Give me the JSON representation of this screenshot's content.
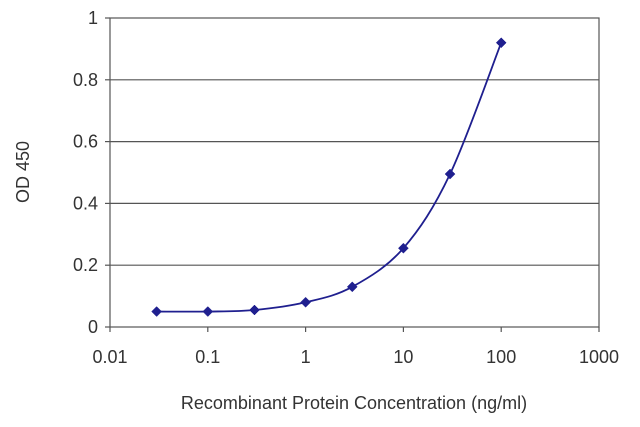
{
  "chart_data": {
    "type": "scatter",
    "title": "",
    "xlabel": "Recombinant Protein Concentration (ng/ml)",
    "ylabel": "OD 450",
    "xscale": "log",
    "xlim": [
      0.01,
      1000
    ],
    "ylim": [
      0,
      1
    ],
    "x_ticks": [
      0.01,
      0.1,
      1,
      10,
      100,
      1000
    ],
    "x_tick_labels": [
      "0.01",
      "0.1",
      "1",
      "10",
      "100",
      "1000"
    ],
    "y_ticks": [
      0,
      0.2,
      0.4,
      0.6,
      0.8,
      1
    ],
    "y_tick_labels": [
      "0",
      "0.2",
      "0.4",
      "0.6",
      "0.8",
      "1"
    ],
    "grid": "horizontal",
    "legend": "none",
    "series": [
      {
        "x": [
          0.03,
          0.1,
          0.3,
          1,
          3,
          10,
          30,
          100
        ],
        "y": [
          0.05,
          0.05,
          0.055,
          0.08,
          0.13,
          0.255,
          0.495,
          0.92
        ],
        "color": "#1f1f8f",
        "marker": "diamond",
        "line": "smooth"
      }
    ]
  }
}
